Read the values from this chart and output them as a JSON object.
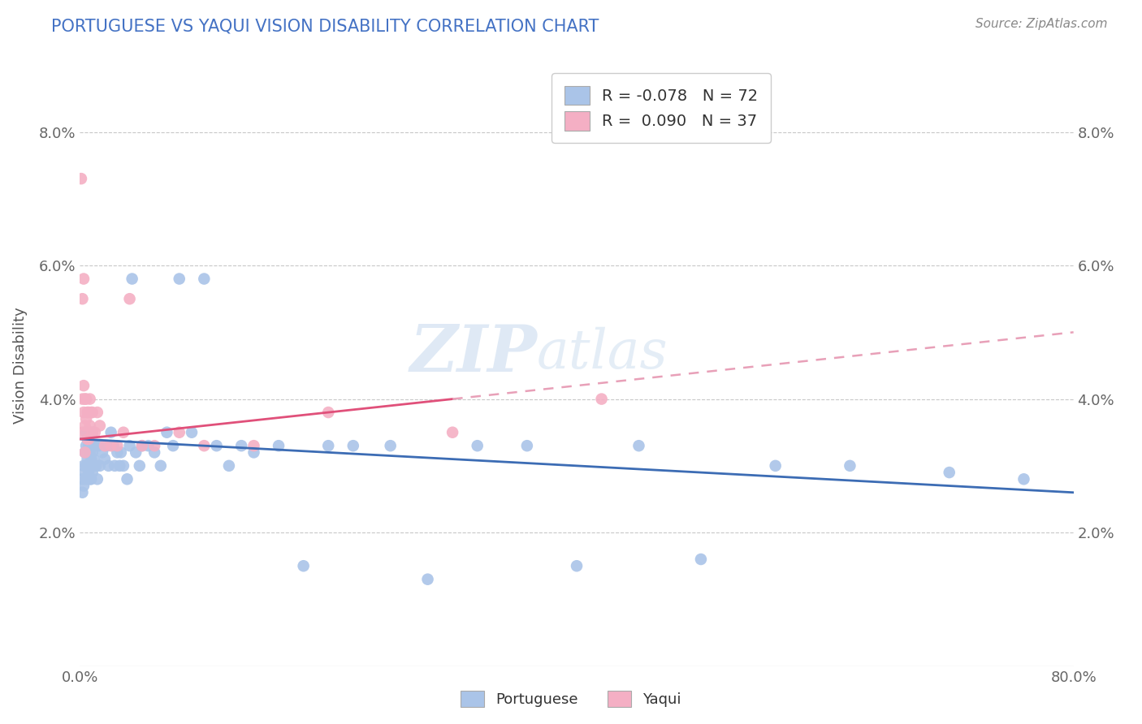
{
  "title": "PORTUGUESE VS YAQUI VISION DISABILITY CORRELATION CHART",
  "source": "Source: ZipAtlas.com",
  "ylabel": "Vision Disability",
  "xlim": [
    0.0,
    0.8
  ],
  "ylim": [
    0.0,
    0.09
  ],
  "portuguese_color": "#aac4e8",
  "yaqui_color": "#f4afc4",
  "portuguese_line_color": "#3c6cb4",
  "yaqui_line_color": "#e0507a",
  "yaqui_dash_color": "#e8a0b8",
  "title_color": "#4472c4",
  "portuguese_R": -0.078,
  "portuguese_N": 72,
  "yaqui_R": 0.09,
  "yaqui_N": 37,
  "portuguese_x": [
    0.002,
    0.002,
    0.003,
    0.003,
    0.004,
    0.004,
    0.005,
    0.005,
    0.005,
    0.005,
    0.006,
    0.006,
    0.007,
    0.007,
    0.008,
    0.008,
    0.008,
    0.009,
    0.009,
    0.01,
    0.01,
    0.01,
    0.011,
    0.012,
    0.013,
    0.014,
    0.015,
    0.016,
    0.018,
    0.02,
    0.022,
    0.023,
    0.025,
    0.027,
    0.028,
    0.03,
    0.032,
    0.033,
    0.035,
    0.038,
    0.04,
    0.042,
    0.045,
    0.048,
    0.05,
    0.055,
    0.06,
    0.065,
    0.07,
    0.075,
    0.08,
    0.09,
    0.1,
    0.11,
    0.12,
    0.13,
    0.14,
    0.16,
    0.18,
    0.2,
    0.22,
    0.25,
    0.28,
    0.32,
    0.36,
    0.4,
    0.45,
    0.5,
    0.56,
    0.62,
    0.7,
    0.76
  ],
  "portuguese_y": [
    0.028,
    0.026,
    0.03,
    0.027,
    0.032,
    0.029,
    0.035,
    0.033,
    0.03,
    0.028,
    0.034,
    0.031,
    0.033,
    0.029,
    0.032,
    0.03,
    0.028,
    0.031,
    0.028,
    0.035,
    0.032,
    0.029,
    0.031,
    0.033,
    0.03,
    0.028,
    0.033,
    0.03,
    0.032,
    0.031,
    0.033,
    0.03,
    0.035,
    0.033,
    0.03,
    0.032,
    0.03,
    0.032,
    0.03,
    0.028,
    0.033,
    0.058,
    0.032,
    0.03,
    0.033,
    0.033,
    0.032,
    0.03,
    0.035,
    0.033,
    0.058,
    0.035,
    0.058,
    0.033,
    0.03,
    0.033,
    0.032,
    0.033,
    0.015,
    0.033,
    0.033,
    0.033,
    0.013,
    0.033,
    0.033,
    0.015,
    0.033,
    0.016,
    0.03,
    0.03,
    0.029,
    0.028
  ],
  "yaqui_x": [
    0.001,
    0.002,
    0.002,
    0.002,
    0.003,
    0.003,
    0.003,
    0.004,
    0.004,
    0.004,
    0.005,
    0.005,
    0.006,
    0.006,
    0.007,
    0.007,
    0.008,
    0.008,
    0.009,
    0.01,
    0.01,
    0.012,
    0.014,
    0.016,
    0.02,
    0.025,
    0.03,
    0.035,
    0.04,
    0.05,
    0.06,
    0.08,
    0.1,
    0.14,
    0.2,
    0.3,
    0.42
  ],
  "yaqui_y": [
    0.073,
    0.055,
    0.04,
    0.035,
    0.058,
    0.042,
    0.038,
    0.04,
    0.036,
    0.032,
    0.04,
    0.037,
    0.038,
    0.034,
    0.038,
    0.034,
    0.04,
    0.036,
    0.038,
    0.038,
    0.035,
    0.035,
    0.038,
    0.036,
    0.033,
    0.033,
    0.033,
    0.035,
    0.055,
    0.033,
    0.033,
    0.035,
    0.033,
    0.033,
    0.038,
    0.035,
    0.04
  ],
  "watermark_line1": "ZIP",
  "watermark_line2": "atlas",
  "background_color": "#ffffff",
  "grid_color": "#c8c8c8"
}
